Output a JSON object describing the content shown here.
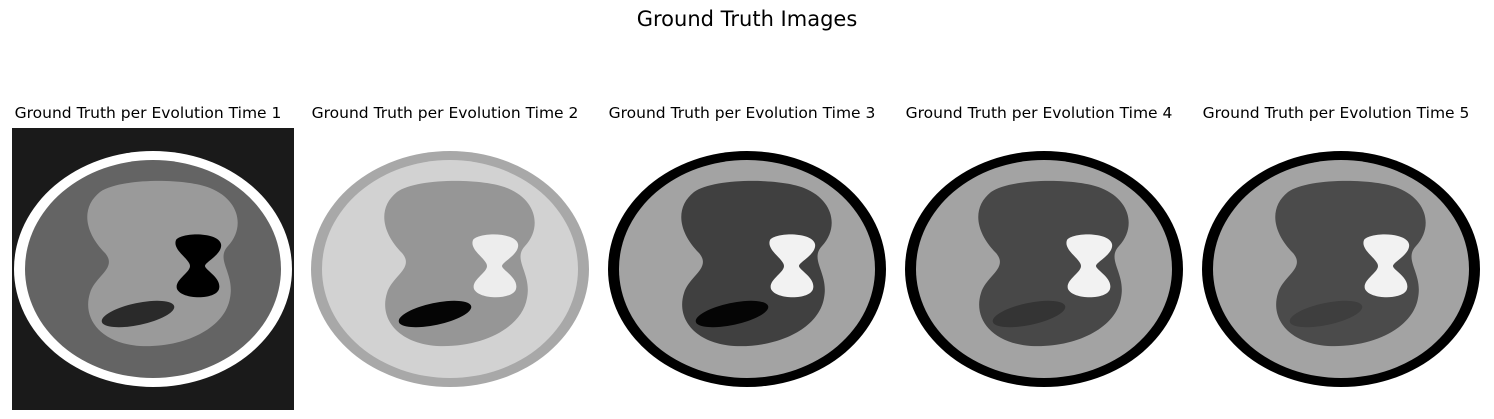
{
  "figure": {
    "title": "Ground Truth Images"
  },
  "chart_data": [
    {
      "type": "heatmap",
      "title": "Ground Truth per Evolution Time 1",
      "colors": {
        "background": "#1a1a1a",
        "rim": "#ffffff",
        "body": "#646464",
        "inner": "#9a9a9a",
        "bright_blob": "#000000",
        "ellipse": "#2a2a2a",
        "ring": "#2a2a2a"
      }
    },
    {
      "type": "heatmap",
      "title": "Ground Truth per Evolution Time 2",
      "colors": {
        "background": "#ffffff",
        "rim": "#a8a8a8",
        "body": "#d2d2d2",
        "inner": "#969696",
        "bright_blob": "#ededed",
        "ellipse": "#050505",
        "ring": "#a8a8a8"
      }
    },
    {
      "type": "heatmap",
      "title": "Ground Truth per Evolution Time 3",
      "colors": {
        "background": "#ffffff",
        "rim": "#000000",
        "body": "#a3a3a3",
        "inner": "#404040",
        "bright_blob": "#f2f2f2",
        "ellipse": "#050505",
        "ring": "#000000"
      }
    },
    {
      "type": "heatmap",
      "title": "Ground Truth per Evolution Time 4",
      "colors": {
        "background": "#ffffff",
        "rim": "#000000",
        "body": "#a3a3a3",
        "inner": "#484848",
        "bright_blob": "#f2f2f2",
        "ellipse": "#343434",
        "ring": "#000000"
      }
    },
    {
      "type": "heatmap",
      "title": "Ground Truth per Evolution Time 5",
      "colors": {
        "background": "#ffffff",
        "rim": "#000000",
        "body": "#a3a3a3",
        "inner": "#4b4b4b",
        "bright_blob": "#f2f2f2",
        "ellipse": "#3e3e3e",
        "ring": "#000000"
      }
    }
  ]
}
